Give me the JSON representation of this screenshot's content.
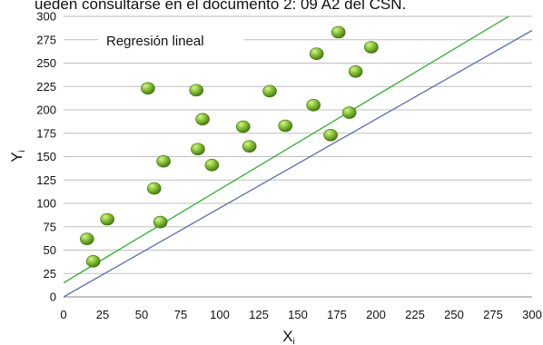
{
  "header_text": "ueden consultarse en el documento 2: 09 A2 del CSN.",
  "chart_data": {
    "type": "scatter",
    "title": "",
    "xlabel": "X",
    "xlabel_sub": "i",
    "ylabel": "Y",
    "ylabel_sub": "i",
    "xlim": [
      0,
      300
    ],
    "ylim": [
      0,
      300
    ],
    "xticks": [
      0,
      25,
      50,
      75,
      100,
      125,
      150,
      175,
      200,
      225,
      250,
      275,
      300
    ],
    "yticks": [
      0,
      25,
      50,
      75,
      100,
      125,
      150,
      175,
      200,
      225,
      250,
      275,
      300
    ],
    "grid": "horizontal",
    "annotation": "Regresión lineal",
    "points": [
      {
        "x": 15,
        "y": 62
      },
      {
        "x": 19,
        "y": 38
      },
      {
        "x": 28,
        "y": 83
      },
      {
        "x": 54,
        "y": 223
      },
      {
        "x": 58,
        "y": 116
      },
      {
        "x": 62,
        "y": 80
      },
      {
        "x": 64,
        "y": 145
      },
      {
        "x": 85,
        "y": 221
      },
      {
        "x": 86,
        "y": 158
      },
      {
        "x": 89,
        "y": 190
      },
      {
        "x": 95,
        "y": 141
      },
      {
        "x": 115,
        "y": 182
      },
      {
        "x": 119,
        "y": 161
      },
      {
        "x": 132,
        "y": 220
      },
      {
        "x": 142,
        "y": 183
      },
      {
        "x": 160,
        "y": 205
      },
      {
        "x": 162,
        "y": 260
      },
      {
        "x": 171,
        "y": 173
      },
      {
        "x": 176,
        "y": 283
      },
      {
        "x": 183,
        "y": 197
      },
      {
        "x": 187,
        "y": 241
      },
      {
        "x": 197,
        "y": 267
      }
    ],
    "lines": [
      {
        "x": [
          0,
          300
        ],
        "y": [
          15,
          315
        ],
        "color": "#3aa83a"
      },
      {
        "x": [
          0,
          300
        ],
        "y": [
          0,
          285
        ],
        "color": "#5b6fa8"
      }
    ]
  }
}
